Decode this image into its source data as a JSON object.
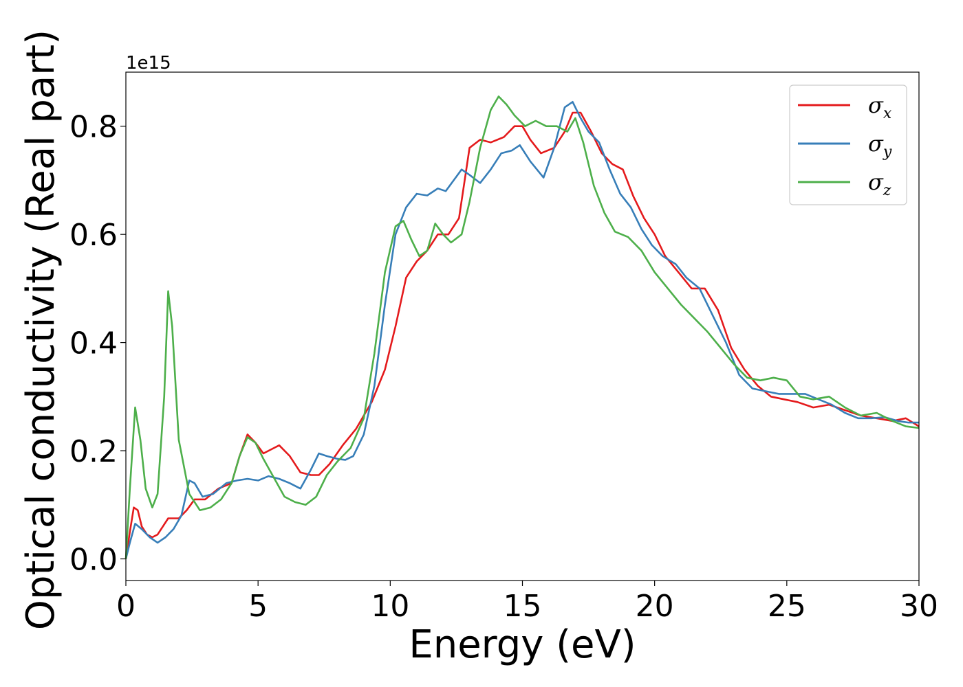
{
  "chart_data": {
    "type": "line",
    "title": "",
    "xlabel": "Energy (eV)",
    "ylabel": "Optical conductivity (Real part)",
    "y_offset_label": "1e15",
    "xlim": [
      0,
      30
    ],
    "ylim": [
      -0.04,
      0.9
    ],
    "x_ticks": [
      0,
      5,
      10,
      15,
      20,
      25,
      30
    ],
    "x_tick_labels": [
      "0",
      "5",
      "10",
      "15",
      "20",
      "25",
      "30"
    ],
    "y_ticks": [
      0.0,
      0.2,
      0.4,
      0.6,
      0.8
    ],
    "y_tick_labels": [
      "0.0",
      "0.2",
      "0.4",
      "0.6",
      "0.8"
    ],
    "grid": false,
    "legend_position": "top-right",
    "series": [
      {
        "name": "σx",
        "symbol": "σ",
        "subscript": "x",
        "color": "#e41a1c",
        "points": [
          [
            0,
            0
          ],
          [
            0.15,
            0.05
          ],
          [
            0.3,
            0.095
          ],
          [
            0.45,
            0.09
          ],
          [
            0.6,
            0.06
          ],
          [
            0.8,
            0.045
          ],
          [
            1.0,
            0.04
          ],
          [
            1.2,
            0.045
          ],
          [
            1.4,
            0.06
          ],
          [
            1.6,
            0.075
          ],
          [
            2.0,
            0.075
          ],
          [
            2.3,
            0.09
          ],
          [
            2.6,
            0.11
          ],
          [
            3.0,
            0.11
          ],
          [
            3.5,
            0.13
          ],
          [
            4.0,
            0.14
          ],
          [
            4.3,
            0.19
          ],
          [
            4.6,
            0.23
          ],
          [
            4.9,
            0.215
          ],
          [
            5.2,
            0.195
          ],
          [
            5.6,
            0.205
          ],
          [
            5.8,
            0.21
          ],
          [
            6.2,
            0.19
          ],
          [
            6.6,
            0.16
          ],
          [
            7.0,
            0.155
          ],
          [
            7.3,
            0.155
          ],
          [
            7.7,
            0.175
          ],
          [
            8.2,
            0.21
          ],
          [
            8.7,
            0.24
          ],
          [
            9.3,
            0.29
          ],
          [
            9.8,
            0.35
          ],
          [
            10.2,
            0.43
          ],
          [
            10.6,
            0.52
          ],
          [
            11.0,
            0.55
          ],
          [
            11.4,
            0.57
          ],
          [
            11.8,
            0.6
          ],
          [
            12.2,
            0.6
          ],
          [
            12.6,
            0.63
          ],
          [
            13.0,
            0.76
          ],
          [
            13.4,
            0.775
          ],
          [
            13.8,
            0.77
          ],
          [
            14.3,
            0.78
          ],
          [
            14.7,
            0.8
          ],
          [
            15.0,
            0.8
          ],
          [
            15.3,
            0.775
          ],
          [
            15.7,
            0.75
          ],
          [
            16.2,
            0.76
          ],
          [
            16.6,
            0.79
          ],
          [
            16.9,
            0.825
          ],
          [
            17.2,
            0.825
          ],
          [
            17.6,
            0.79
          ],
          [
            18.0,
            0.75
          ],
          [
            18.4,
            0.73
          ],
          [
            18.8,
            0.72
          ],
          [
            19.2,
            0.67
          ],
          [
            19.6,
            0.63
          ],
          [
            20.0,
            0.6
          ],
          [
            20.4,
            0.56
          ],
          [
            20.9,
            0.53
          ],
          [
            21.4,
            0.5
          ],
          [
            21.9,
            0.5
          ],
          [
            22.4,
            0.46
          ],
          [
            22.9,
            0.39
          ],
          [
            23.4,
            0.35
          ],
          [
            23.9,
            0.32
          ],
          [
            24.4,
            0.3
          ],
          [
            24.9,
            0.295
          ],
          [
            25.4,
            0.29
          ],
          [
            26.0,
            0.28
          ],
          [
            26.6,
            0.285
          ],
          [
            27.2,
            0.275
          ],
          [
            27.8,
            0.265
          ],
          [
            28.4,
            0.26
          ],
          [
            29.0,
            0.255
          ],
          [
            29.5,
            0.26
          ],
          [
            30.0,
            0.245
          ]
        ]
      },
      {
        "name": "σy",
        "symbol": "σ",
        "subscript": "y",
        "color": "#377eb8",
        "points": [
          [
            0,
            0
          ],
          [
            0.15,
            0.03
          ],
          [
            0.35,
            0.065
          ],
          [
            0.6,
            0.055
          ],
          [
            0.9,
            0.04
          ],
          [
            1.2,
            0.03
          ],
          [
            1.5,
            0.04
          ],
          [
            1.8,
            0.055
          ],
          [
            2.1,
            0.08
          ],
          [
            2.4,
            0.145
          ],
          [
            2.6,
            0.14
          ],
          [
            2.9,
            0.115
          ],
          [
            3.3,
            0.12
          ],
          [
            3.8,
            0.14
          ],
          [
            4.2,
            0.145
          ],
          [
            4.6,
            0.148
          ],
          [
            5.0,
            0.145
          ],
          [
            5.4,
            0.153
          ],
          [
            5.8,
            0.148
          ],
          [
            6.2,
            0.14
          ],
          [
            6.6,
            0.13
          ],
          [
            7.0,
            0.165
          ],
          [
            7.3,
            0.195
          ],
          [
            7.6,
            0.19
          ],
          [
            8.0,
            0.185
          ],
          [
            8.3,
            0.183
          ],
          [
            8.6,
            0.19
          ],
          [
            9.0,
            0.23
          ],
          [
            9.4,
            0.32
          ],
          [
            9.8,
            0.47
          ],
          [
            10.2,
            0.6
          ],
          [
            10.6,
            0.65
          ],
          [
            11.0,
            0.675
          ],
          [
            11.4,
            0.672
          ],
          [
            11.8,
            0.685
          ],
          [
            12.1,
            0.68
          ],
          [
            12.4,
            0.7
          ],
          [
            12.7,
            0.72
          ],
          [
            13.0,
            0.71
          ],
          [
            13.4,
            0.695
          ],
          [
            13.8,
            0.72
          ],
          [
            14.2,
            0.75
          ],
          [
            14.6,
            0.755
          ],
          [
            14.9,
            0.765
          ],
          [
            15.3,
            0.735
          ],
          [
            15.8,
            0.705
          ],
          [
            16.2,
            0.76
          ],
          [
            16.6,
            0.835
          ],
          [
            16.9,
            0.845
          ],
          [
            17.2,
            0.815
          ],
          [
            17.5,
            0.79
          ],
          [
            17.9,
            0.77
          ],
          [
            18.3,
            0.72
          ],
          [
            18.7,
            0.675
          ],
          [
            19.1,
            0.65
          ],
          [
            19.5,
            0.61
          ],
          [
            19.9,
            0.58
          ],
          [
            20.3,
            0.56
          ],
          [
            20.8,
            0.545
          ],
          [
            21.2,
            0.52
          ],
          [
            21.7,
            0.5
          ],
          [
            22.2,
            0.45
          ],
          [
            22.7,
            0.4
          ],
          [
            23.2,
            0.34
          ],
          [
            23.7,
            0.315
          ],
          [
            24.2,
            0.31
          ],
          [
            24.7,
            0.305
          ],
          [
            25.2,
            0.305
          ],
          [
            25.7,
            0.305
          ],
          [
            26.2,
            0.295
          ],
          [
            26.7,
            0.285
          ],
          [
            27.2,
            0.27
          ],
          [
            27.7,
            0.26
          ],
          [
            28.2,
            0.26
          ],
          [
            28.7,
            0.262
          ],
          [
            29.2,
            0.255
          ],
          [
            29.6,
            0.252
          ],
          [
            30.0,
            0.252
          ]
        ]
      },
      {
        "name": "σz",
        "symbol": "σ",
        "subscript": "z",
        "color": "#4daf4a",
        "points": [
          [
            0,
            0
          ],
          [
            0.15,
            0.13
          ],
          [
            0.35,
            0.28
          ],
          [
            0.55,
            0.22
          ],
          [
            0.75,
            0.13
          ],
          [
            1.0,
            0.095
          ],
          [
            1.2,
            0.12
          ],
          [
            1.45,
            0.3
          ],
          [
            1.6,
            0.495
          ],
          [
            1.75,
            0.43
          ],
          [
            2.0,
            0.22
          ],
          [
            2.4,
            0.12
          ],
          [
            2.8,
            0.09
          ],
          [
            3.2,
            0.095
          ],
          [
            3.6,
            0.11
          ],
          [
            4.0,
            0.14
          ],
          [
            4.3,
            0.19
          ],
          [
            4.6,
            0.225
          ],
          [
            4.9,
            0.215
          ],
          [
            5.2,
            0.185
          ],
          [
            5.6,
            0.15
          ],
          [
            6.0,
            0.115
          ],
          [
            6.4,
            0.105
          ],
          [
            6.8,
            0.1
          ],
          [
            7.2,
            0.115
          ],
          [
            7.6,
            0.155
          ],
          [
            8.0,
            0.18
          ],
          [
            8.5,
            0.205
          ],
          [
            9.0,
            0.26
          ],
          [
            9.4,
            0.38
          ],
          [
            9.8,
            0.53
          ],
          [
            10.2,
            0.615
          ],
          [
            10.5,
            0.625
          ],
          [
            10.8,
            0.59
          ],
          [
            11.1,
            0.56
          ],
          [
            11.4,
            0.57
          ],
          [
            11.7,
            0.62
          ],
          [
            12.0,
            0.6
          ],
          [
            12.3,
            0.585
          ],
          [
            12.7,
            0.6
          ],
          [
            13.0,
            0.66
          ],
          [
            13.4,
            0.76
          ],
          [
            13.8,
            0.83
          ],
          [
            14.1,
            0.855
          ],
          [
            14.4,
            0.84
          ],
          [
            14.7,
            0.82
          ],
          [
            15.1,
            0.8
          ],
          [
            15.5,
            0.81
          ],
          [
            15.9,
            0.8
          ],
          [
            16.3,
            0.8
          ],
          [
            16.7,
            0.79
          ],
          [
            17.0,
            0.815
          ],
          [
            17.3,
            0.77
          ],
          [
            17.7,
            0.69
          ],
          [
            18.1,
            0.64
          ],
          [
            18.5,
            0.605
          ],
          [
            19.0,
            0.595
          ],
          [
            19.5,
            0.57
          ],
          [
            20.0,
            0.53
          ],
          [
            20.5,
            0.5
          ],
          [
            21.0,
            0.47
          ],
          [
            21.5,
            0.445
          ],
          [
            22.0,
            0.42
          ],
          [
            22.5,
            0.39
          ],
          [
            23.0,
            0.36
          ],
          [
            23.5,
            0.335
          ],
          [
            24.0,
            0.33
          ],
          [
            24.5,
            0.335
          ],
          [
            25.0,
            0.33
          ],
          [
            25.5,
            0.3
          ],
          [
            26.0,
            0.295
          ],
          [
            26.6,
            0.3
          ],
          [
            27.2,
            0.28
          ],
          [
            27.8,
            0.265
          ],
          [
            28.4,
            0.27
          ],
          [
            29.0,
            0.255
          ],
          [
            29.5,
            0.245
          ],
          [
            30.0,
            0.242
          ]
        ]
      }
    ]
  }
}
